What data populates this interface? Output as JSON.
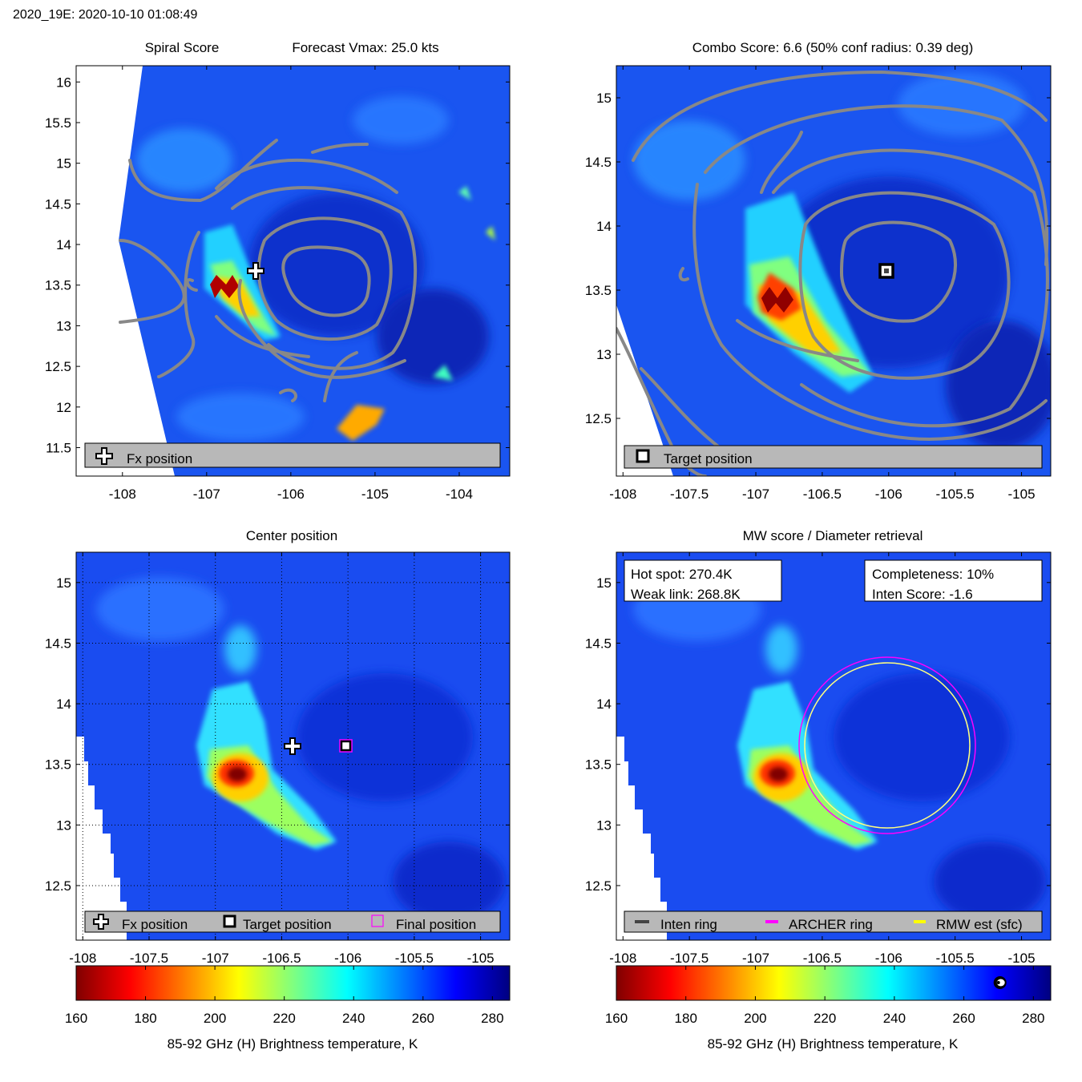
{
  "figure_title": "2020_19E: 2020-10-10 01:08:49",
  "chart_data": [
    {
      "id": "spiral",
      "type": "heatmap",
      "title": "Spiral Score",
      "subtitle": "Forecast Vmax: 25.0 kts",
      "xticks": [
        "-108",
        "-107",
        "-106",
        "-105",
        "-104"
      ],
      "xtick_values": [
        -108,
        -107,
        -106,
        -105,
        -104
      ],
      "yticks": [
        "16",
        "15.5",
        "15",
        "14.5",
        "14",
        "13.5",
        "13",
        "12.5",
        "12",
        "11.5"
      ],
      "ytick_values": [
        16,
        15.5,
        15,
        14.5,
        14,
        13.5,
        13,
        12.5,
        12,
        11.5
      ],
      "xlim": [
        -108.55,
        -103.4
      ],
      "ylim": [
        11.15,
        16.2
      ],
      "legend": [
        "Fx position"
      ],
      "fx_position": [
        -106.4,
        13.65
      ]
    },
    {
      "id": "combo",
      "type": "heatmap",
      "title": "Combo Score: 6.6  (50% conf radius: 0.39 deg)",
      "xticks": [
        "-108",
        "-107.5",
        "-107",
        "-106.5",
        "-106",
        "-105.5",
        "-105"
      ],
      "xtick_values": [
        -108,
        -107.5,
        -107,
        -106.5,
        -106,
        -105.5,
        -105
      ],
      "yticks": [
        "15",
        "14.5",
        "14",
        "13.5",
        "13",
        "12.5"
      ],
      "ytick_values": [
        15,
        14.5,
        14,
        13.5,
        13,
        12.5
      ],
      "xlim": [
        -108.05,
        -104.78
      ],
      "ylim": [
        12.05,
        15.25
      ],
      "legend": [
        "Target position"
      ],
      "target_position": [
        -106,
        13.65
      ]
    },
    {
      "id": "center",
      "type": "heatmap",
      "title": "Center position",
      "xticks": [
        "-108",
        "-107.5",
        "-107",
        "-106.5",
        "-106",
        "-105.5",
        "-105"
      ],
      "xtick_values": [
        -108,
        -107.5,
        -107,
        -106.5,
        -106,
        -105.5,
        -105
      ],
      "yticks": [
        "15",
        "14.5",
        "14",
        "13.5",
        "13",
        "12.5"
      ],
      "ytick_values": [
        15,
        14.5,
        14,
        13.5,
        13,
        12.5
      ],
      "xlim": [
        -108.05,
        -104.78
      ],
      "ylim": [
        12.05,
        15.25
      ],
      "legend": [
        "Fx position",
        "Target position",
        "Final position"
      ],
      "fx_position": [
        -106.4,
        13.65
      ],
      "target_position": [
        -106,
        13.65
      ],
      "colorbar": {
        "ticks": [
          "160",
          "180",
          "200",
          "220",
          "240",
          "260",
          "280"
        ],
        "tick_values": [
          160,
          180,
          200,
          220,
          240,
          260,
          280
        ],
        "range": [
          160,
          285
        ],
        "label": "85-92 GHz (H) Brightness temperature, K"
      }
    },
    {
      "id": "mw",
      "type": "heatmap",
      "title": "MW score / Diameter retrieval",
      "xticks": [
        "-108",
        "-107.5",
        "-107",
        "-106.5",
        "-106",
        "-105.5",
        "-105"
      ],
      "xtick_values": [
        -108,
        -107.5,
        -107,
        -106.5,
        -106,
        -105.5,
        -105
      ],
      "yticks": [
        "15",
        "14.5",
        "14",
        "13.5",
        "13",
        "12.5"
      ],
      "ytick_values": [
        15,
        14.5,
        14,
        13.5,
        13,
        12.5
      ],
      "xlim": [
        -108.05,
        -104.78
      ],
      "ylim": [
        12.05,
        15.25
      ],
      "legend": [
        "Inten ring",
        "ARCHER ring",
        "RMW est (sfc)"
      ],
      "hot_spot": "Hot spot: 270.4K",
      "weak_link": "Weak link: 268.8K",
      "completeness": "Completeness: 10%",
      "inten_score": "Inten Score: -1.6",
      "colorbar": {
        "ticks": [
          "160",
          "180",
          "200",
          "220",
          "240",
          "260",
          "280"
        ],
        "tick_values": [
          160,
          180,
          200,
          220,
          240,
          260,
          280
        ],
        "range": [
          160,
          285
        ],
        "label": "85-92 GHz (H) Brightness temperature, K",
        "marker_value": 270.4
      }
    }
  ],
  "colors": {
    "magenta": "#ff00ff",
    "yellow": "#ffff00",
    "contour": "#888888",
    "legend_bg": "#b8b8b8"
  }
}
